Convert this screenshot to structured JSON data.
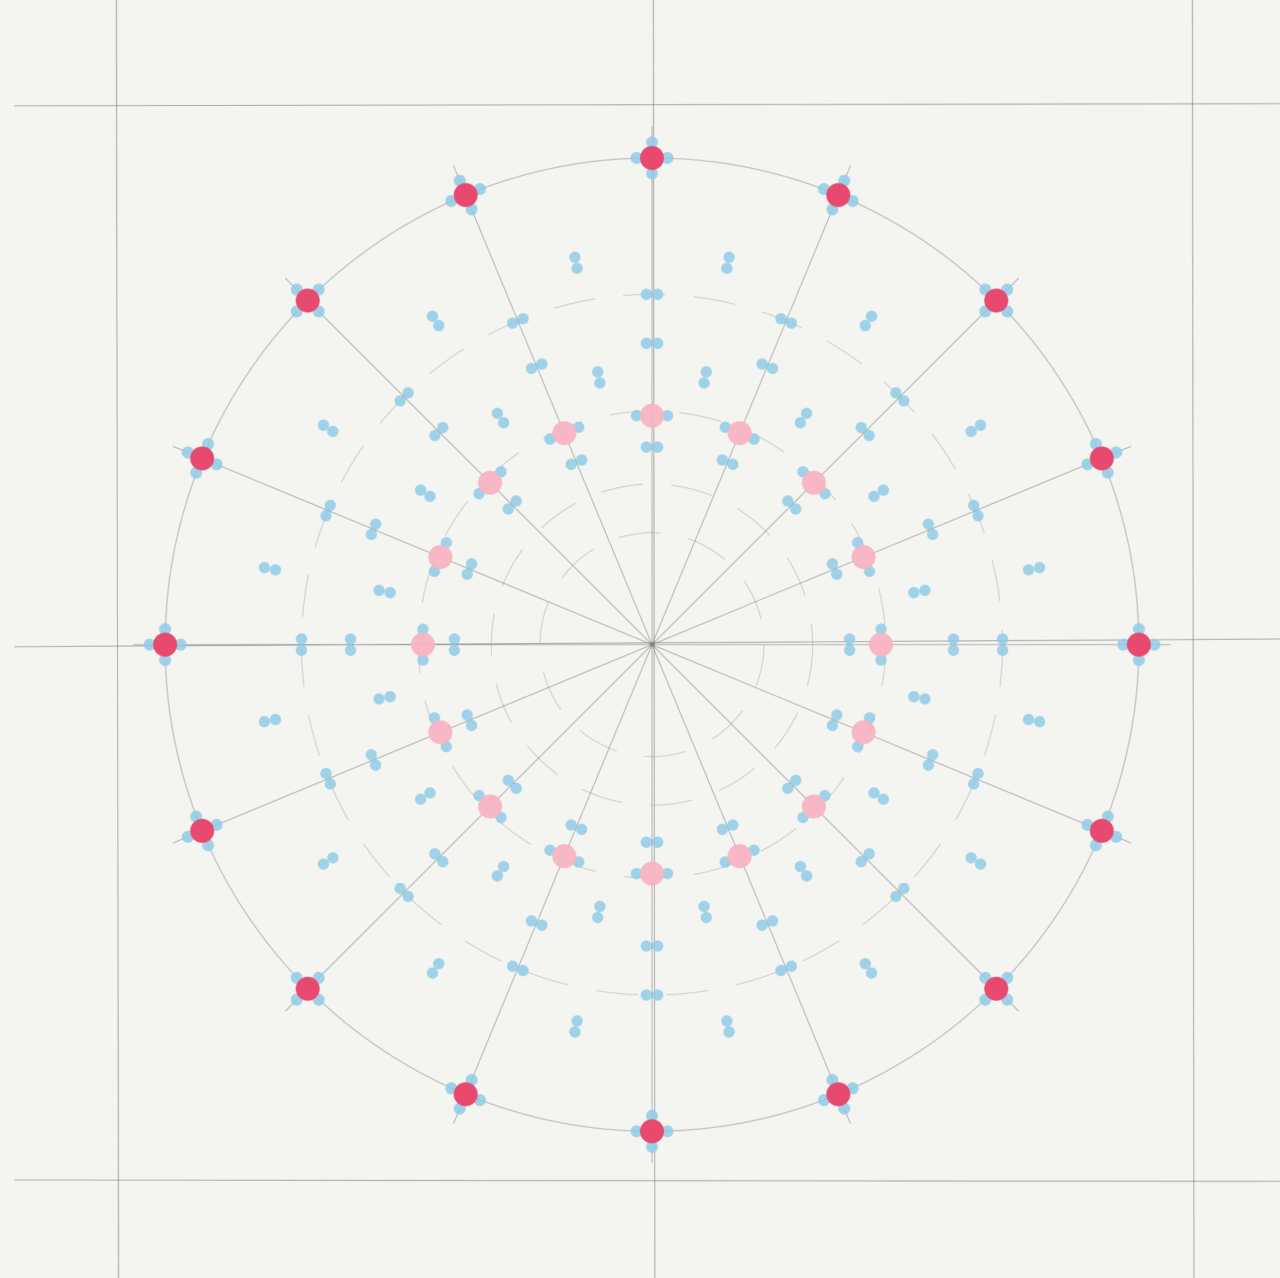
{
  "artwork": {
    "paper_color": "#f4f4f1",
    "pencil_color": "#6e6e6e",
    "guide_circle_color": "#b4b4b4",
    "major_dot_color": "#e8496e",
    "minor_dot_color": "#f7b3c2",
    "accent_dot_color": "#8fcbe6",
    "spoke_count": 16,
    "ring_count": 5,
    "major_dot_count": 16,
    "minor_dot_count": 16
  }
}
